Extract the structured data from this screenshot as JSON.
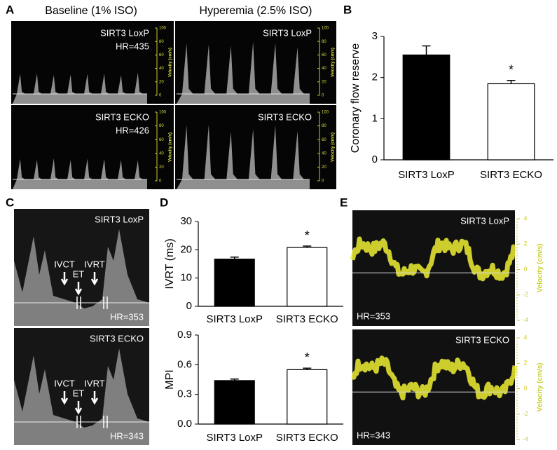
{
  "panel_labels": [
    "A",
    "B",
    "C",
    "D",
    "E"
  ],
  "doppler_a": {
    "columns": [
      "Baseline (1% ISO)",
      "Hyperemia (2.5% ISO)"
    ],
    "scale_title": "Velocity (cm/s)",
    "scale_ticks": [
      100,
      80,
      60,
      40,
      20,
      0
    ],
    "panels": [
      {
        "label": "SIRT3 LoxP",
        "hr": "HR=435"
      },
      {
        "label": "SIRT3 LoxP"
      },
      {
        "label": "SIRT3 ECKO",
        "hr": "HR=426"
      },
      {
        "label": "SIRT3 ECKO"
      }
    ]
  },
  "doppler_c": {
    "markers": [
      "IVCT",
      "ET",
      "IVRT"
    ],
    "panels": [
      {
        "label": "SIRT3 LoxP",
        "hr": "HR=353"
      },
      {
        "label": "SIRT3 ECKO",
        "hr": "HR=343"
      }
    ]
  },
  "doppler_e": {
    "scale_title": "Velocity (cm/s)",
    "scale_ticks": [
      4,
      2,
      0,
      -2,
      -4
    ],
    "panels": [
      {
        "label": "SIRT3 LoxP",
        "hr": "HR=353"
      },
      {
        "label": "SIRT3 ECKO",
        "hr": "HR=343"
      }
    ]
  },
  "chart_data": [
    {
      "type": "bar",
      "ylabel": "Coronary flow reserve",
      "categories": [
        "SIRT3 LoxP",
        "SIRT3 ECKO"
      ],
      "values": [
        2.55,
        1.85
      ],
      "errors": [
        0.22,
        0.08
      ],
      "colors": [
        "#000000",
        "#ffffff"
      ],
      "ylim": [
        0,
        3
      ],
      "yticks": [
        0,
        1,
        2,
        3
      ],
      "annotation": "*"
    },
    {
      "type": "bar",
      "ylabel": "IVRT (ms)",
      "categories": [
        "SIRT3 LoxP",
        "SIRT3 ECKO"
      ],
      "values": [
        16.7,
        20.8
      ],
      "errors": [
        0.7,
        0.5
      ],
      "colors": [
        "#000000",
        "#ffffff"
      ],
      "ylim": [
        0,
        30
      ],
      "yticks": [
        0,
        10,
        20,
        30
      ],
      "annotation": "*"
    },
    {
      "type": "bar",
      "ylabel": "MPI",
      "categories": [
        "SIRT3 LoxP",
        "SIRT3 ECKO"
      ],
      "values": [
        0.44,
        0.55
      ],
      "errors": [
        0.015,
        0.015
      ],
      "colors": [
        "#000000",
        "#ffffff"
      ],
      "ylim": [
        0,
        0.9
      ],
      "yticks": [
        {
          "value": 0,
          "label": "0.0"
        },
        0.3,
        0.6,
        0.9
      ],
      "annotation": "*"
    }
  ]
}
